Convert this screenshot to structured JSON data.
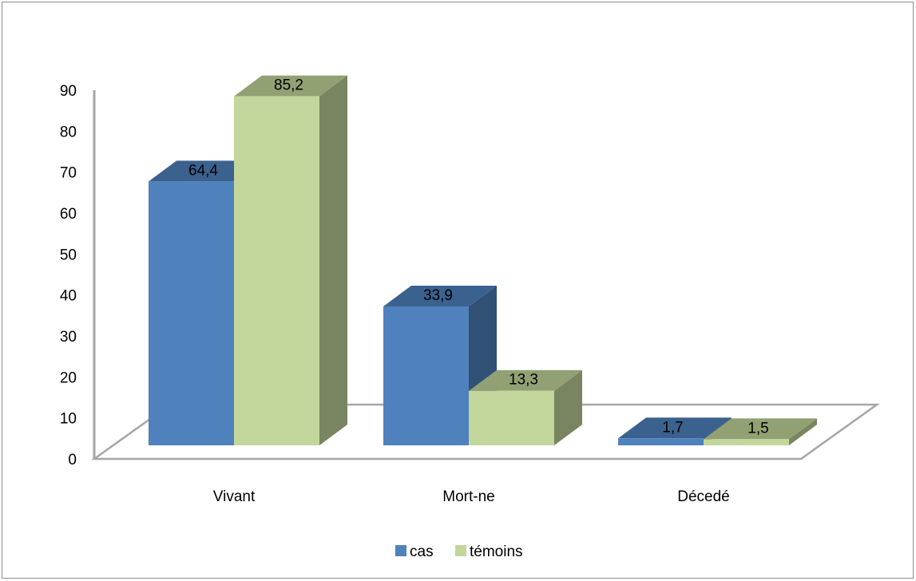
{
  "chart_data": {
    "type": "bar",
    "title": "",
    "xlabel": "",
    "ylabel": "",
    "categories": [
      "Vivant",
      "Mort-ne",
      "Décedé"
    ],
    "series": [
      {
        "name": "cas",
        "values": [
          64.4,
          33.9,
          1.7
        ],
        "labels": [
          "64,4",
          "33,9",
          "1,7"
        ],
        "color": "#4f81bd"
      },
      {
        "name": "témoins",
        "values": [
          85.2,
          13.3,
          1.5
        ],
        "labels": [
          "85,2",
          "13,3",
          "1,5"
        ],
        "color": "#c3d69b"
      }
    ],
    "ylim": [
      0,
      90
    ],
    "yticks": [
      0,
      10,
      20,
      30,
      40,
      50,
      60,
      70,
      80,
      90
    ],
    "grid": false,
    "legend_position": "bottom",
    "style": "3d-column"
  }
}
